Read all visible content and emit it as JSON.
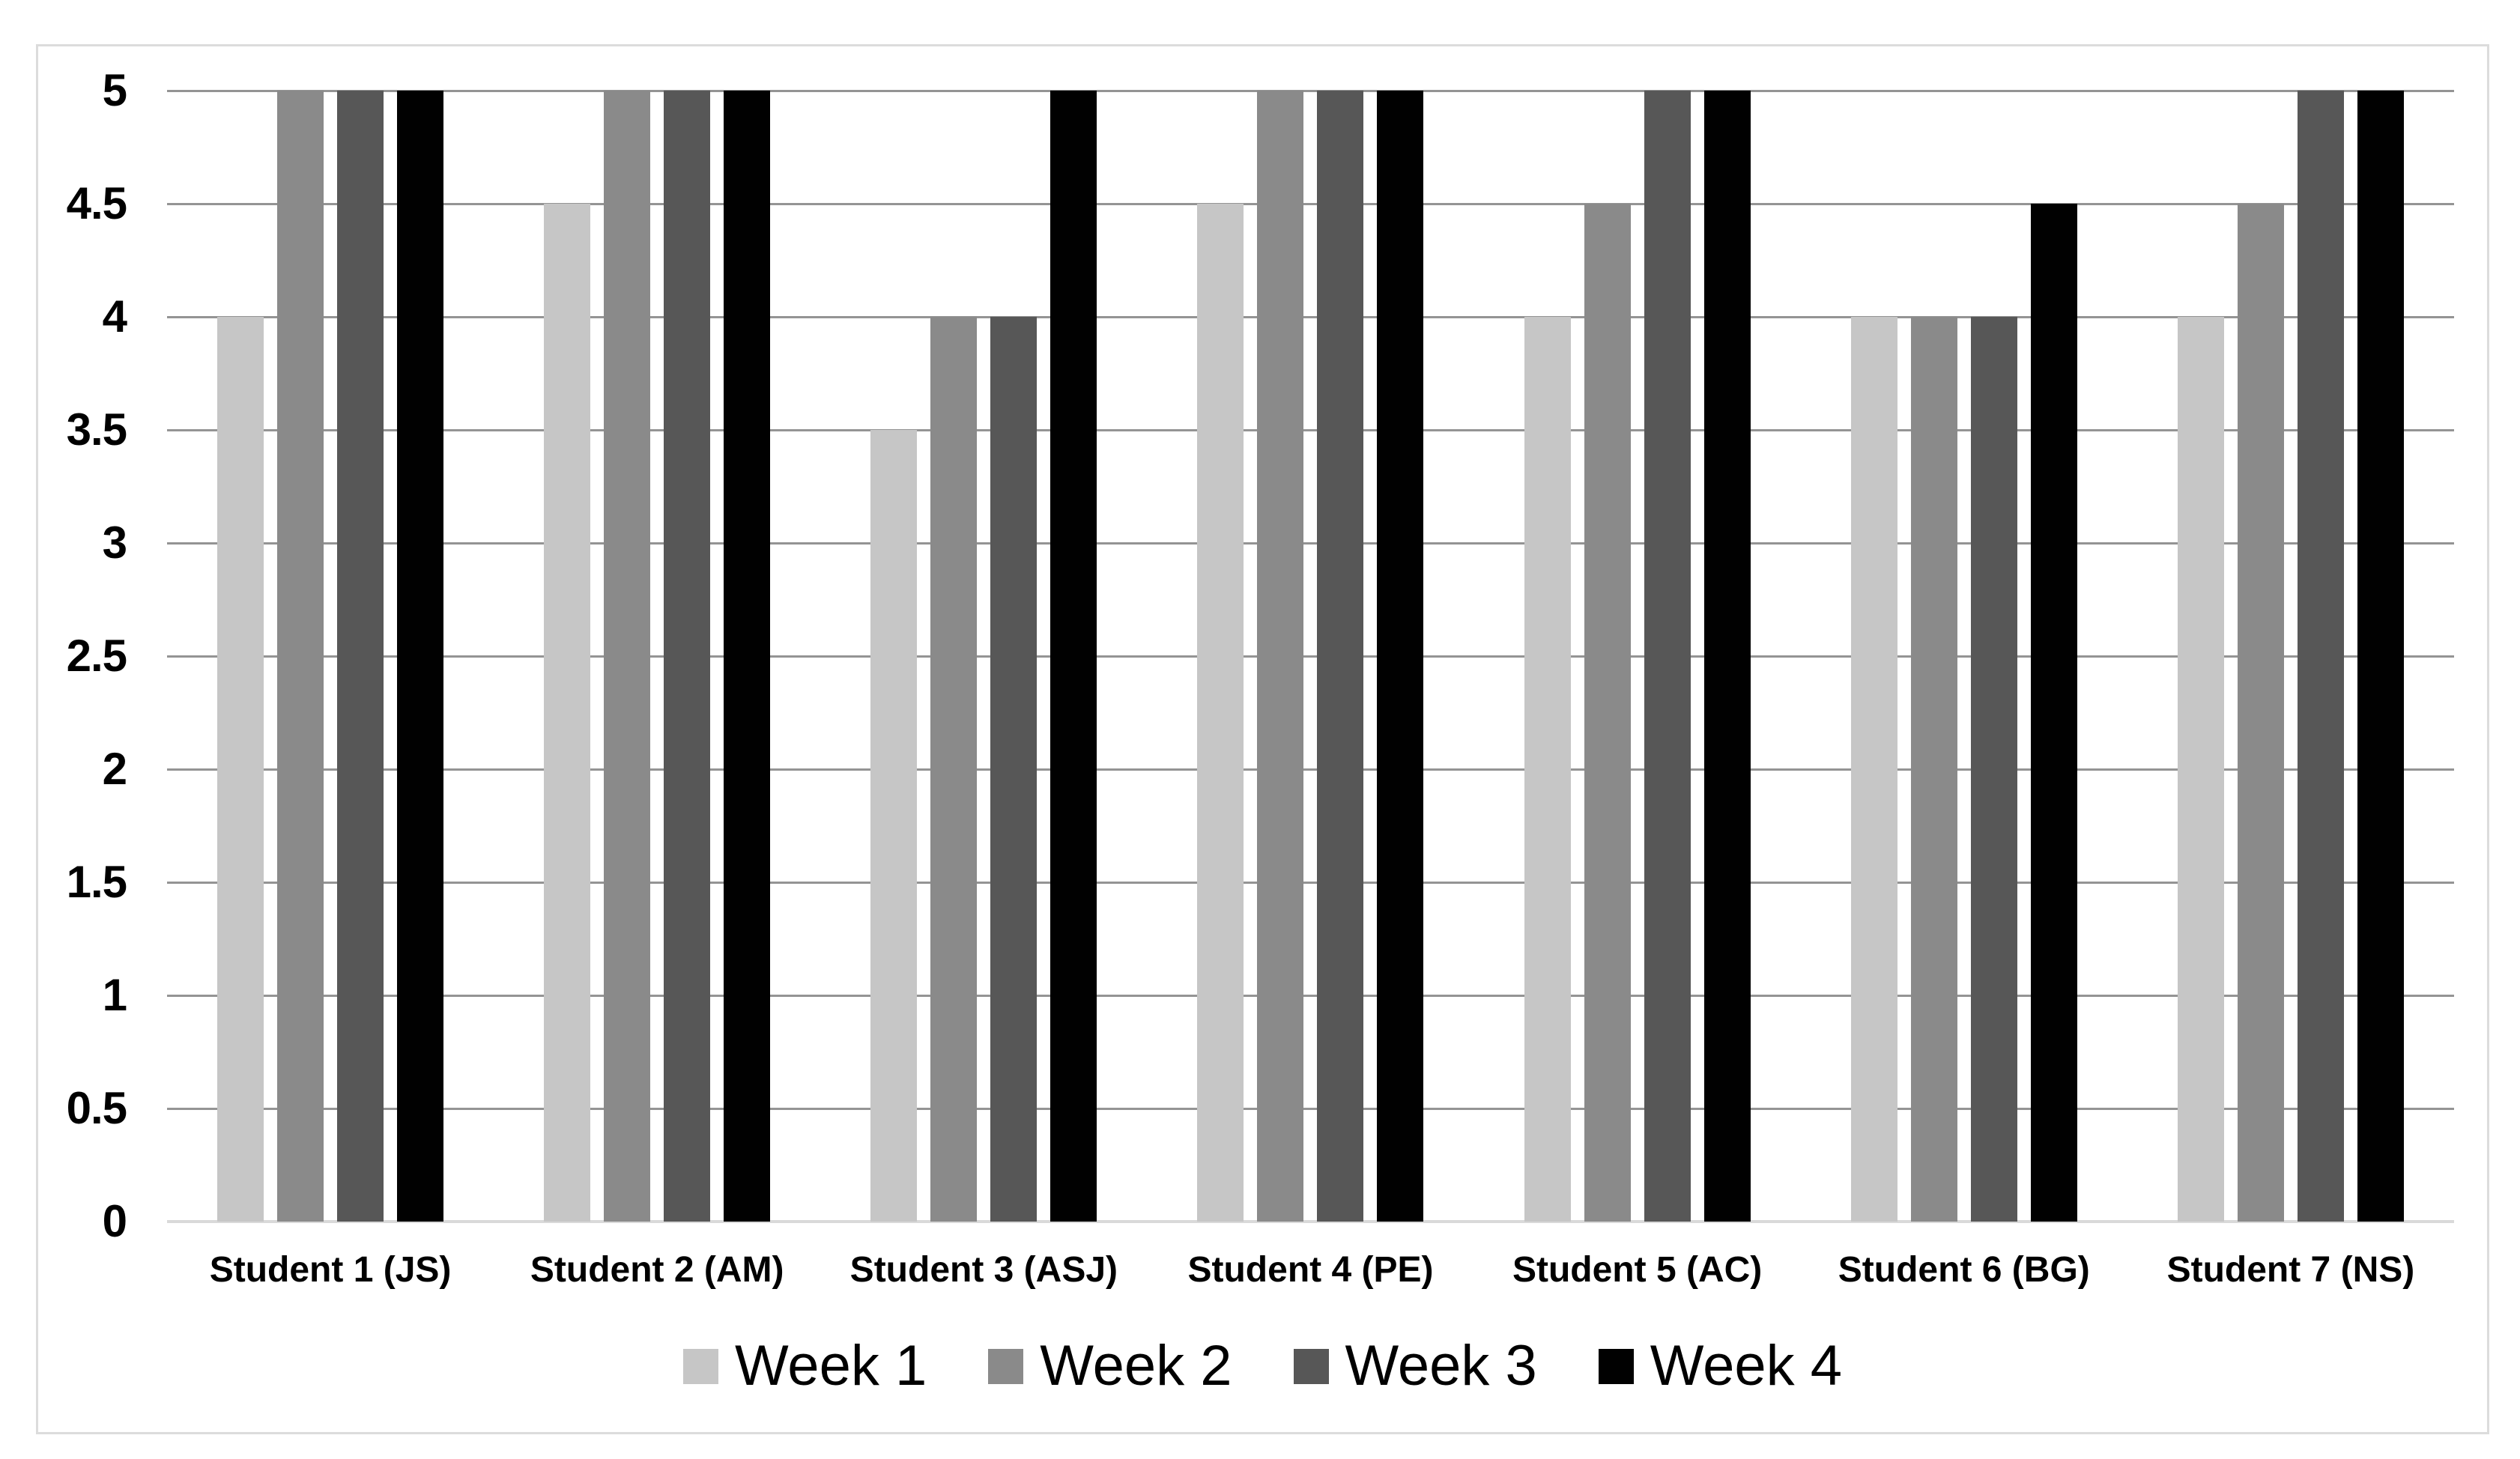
{
  "chart_data": {
    "type": "bar",
    "title": "",
    "categories": [
      "Student 1 (JS)",
      "Student 2 (AM)",
      "Student 3 (ASJ)",
      "Student 4 (PE)",
      "Student 5 (AC)",
      "Student 6 (BG)",
      "Student 7 (NS)"
    ],
    "series": [
      {
        "name": "Week 1",
        "color_key": "week1",
        "values": [
          4,
          4.5,
          3.5,
          4.5,
          4,
          4,
          4
        ]
      },
      {
        "name": "Week 2",
        "color_key": "week2",
        "values": [
          5,
          5,
          4,
          5,
          4.5,
          4,
          4.5
        ]
      },
      {
        "name": "Week 3",
        "color_key": "week3",
        "values": [
          5,
          5,
          4,
          5,
          5,
          4,
          5
        ]
      },
      {
        "name": "Week 4",
        "color_key": "week4",
        "values": [
          5,
          5,
          5,
          5,
          5,
          4.5,
          5
        ]
      }
    ],
    "y_axis": {
      "min": 0,
      "max": 5,
      "step": 0.5,
      "tick_labels": [
        "0",
        "0.5",
        "1",
        "1.5",
        "2",
        "2.5",
        "3",
        "3.5",
        "4",
        "4.5",
        "5"
      ]
    },
    "xlabel": "",
    "ylabel": "",
    "grid": true,
    "legend_position": "bottom"
  },
  "colors": {
    "week1": "#c6c6c6",
    "week2": "#8a8a8a",
    "week3": "#575757",
    "week4": "#010101",
    "gridline": "#949494",
    "baseline": "#d9d9d9",
    "frame": "#dcdcdc",
    "text": "#000000"
  }
}
